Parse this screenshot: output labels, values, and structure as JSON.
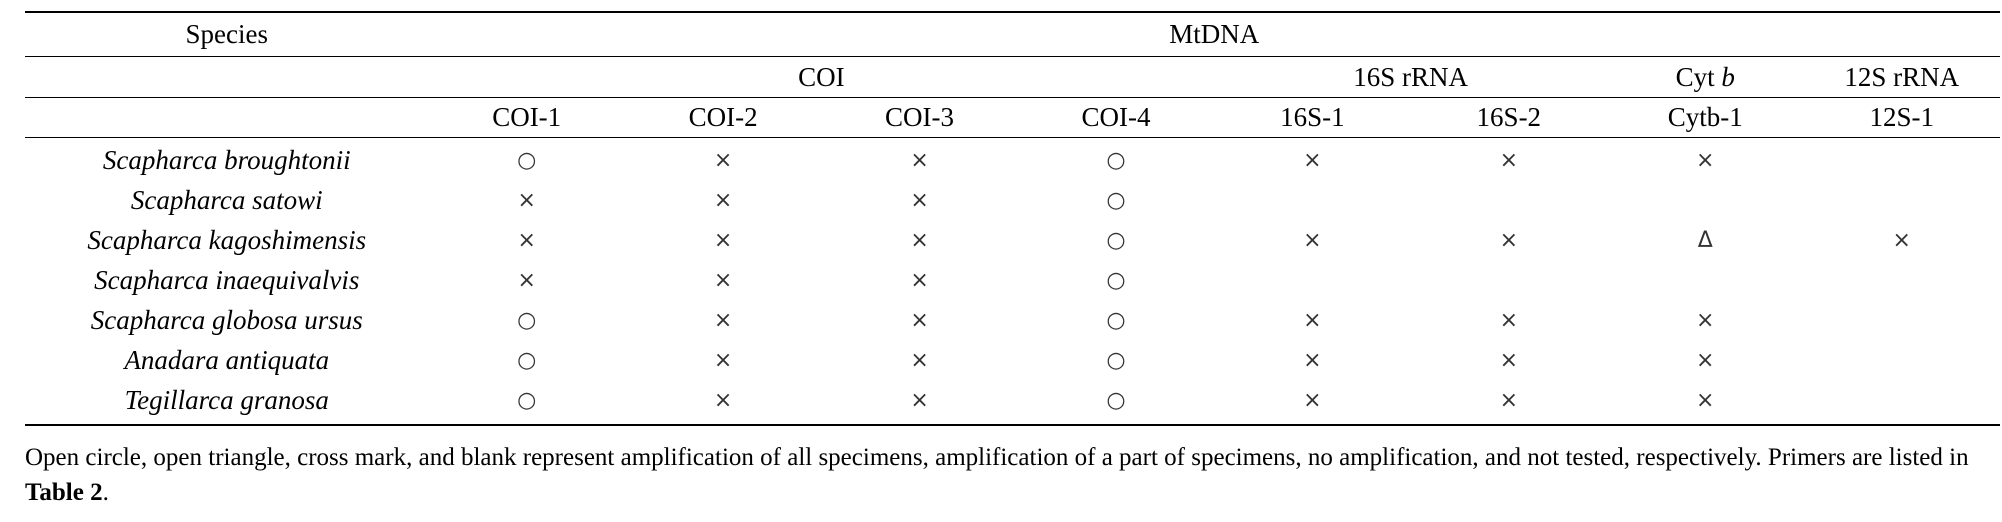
{
  "table": {
    "species_header": "Species",
    "mtdna_header": "MtDNA",
    "gene_groups": [
      {
        "label": "COI",
        "span": 4
      },
      {
        "label": "16S rRNA",
        "span": 2
      },
      {
        "label_main": "Cyt ",
        "label_italic": "b",
        "span": 1
      },
      {
        "label": "12S rRNA",
        "span": 1
      }
    ],
    "primers": [
      "COI-1",
      "COI-2",
      "COI-3",
      "COI-4",
      "16S-1",
      "16S-2",
      "Cytb-1",
      "12S-1"
    ],
    "rows": [
      {
        "species": "Scapharca broughtonii",
        "results": [
          "○",
          "×",
          "×",
          "○",
          "×",
          "×",
          "×",
          ""
        ]
      },
      {
        "species": "Scapharca satowi",
        "results": [
          "×",
          "×",
          "×",
          "○",
          "",
          "",
          "",
          ""
        ]
      },
      {
        "species": "Scapharca kagoshimensis",
        "results": [
          "×",
          "×",
          "×",
          "○",
          "×",
          "×",
          "Δ",
          "×"
        ]
      },
      {
        "species": "Scapharca inaequivalvis",
        "results": [
          "×",
          "×",
          "×",
          "○",
          "",
          "",
          "",
          ""
        ]
      },
      {
        "species": "Scapharca globosa ursus",
        "results": [
          "○",
          "×",
          "×",
          "○",
          "×",
          "×",
          "×",
          ""
        ]
      },
      {
        "species": "Anadara antiquata",
        "results": [
          "○",
          "×",
          "×",
          "○",
          "×",
          "×",
          "×",
          ""
        ]
      },
      {
        "species": "Tegillarca granosa",
        "results": [
          "○",
          "×",
          "×",
          "○",
          "×",
          "×",
          "×",
          ""
        ]
      }
    ]
  },
  "note": {
    "text": "Open circle, open triangle, cross mark, and blank represent amplification of all specimens, amplification of a part of specimens, no amplification, and not tested, respectively. Primers are listed in ",
    "ref_bold": "Table 2",
    "end": "."
  }
}
